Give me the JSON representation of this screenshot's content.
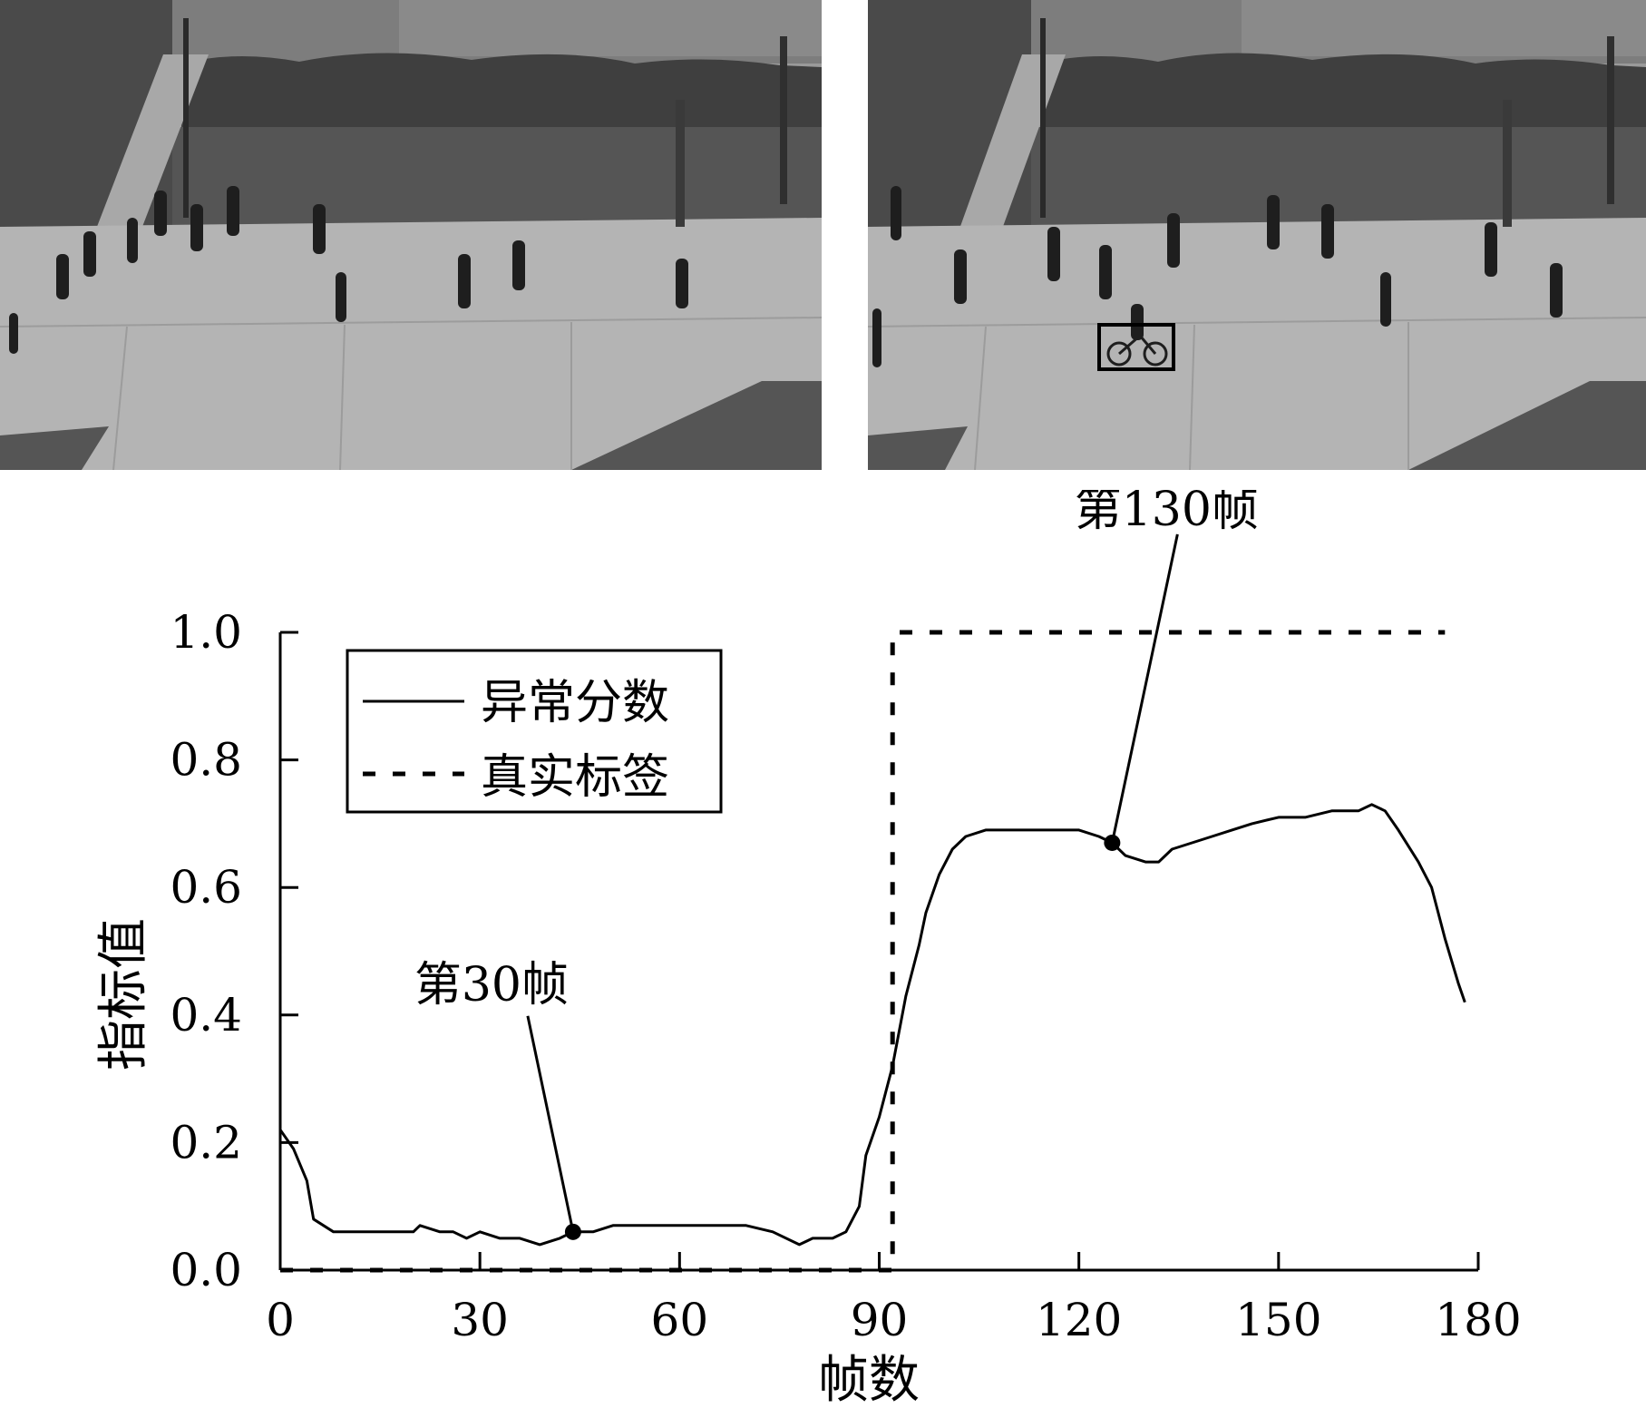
{
  "figure": {
    "panels": [
      {
        "name": "normal-frame",
        "content": "grayscale surveillance frame: pedestrians walking on a campus plaza"
      },
      {
        "name": "anomaly-frame",
        "content": "grayscale surveillance frame: pedestrians on a campus plaza, a cyclist marked with a rectangle"
      }
    ]
  },
  "chart_data": {
    "type": "line",
    "title": "",
    "xlabel": "帧数",
    "ylabel": "指标值",
    "xlim": [
      0,
      180
    ],
    "ylim": [
      0.0,
      1.0
    ],
    "x_ticks": [
      "0",
      "30",
      "60",
      "90",
      "120",
      "150",
      "180"
    ],
    "y_ticks": [
      "0.0",
      "0.2",
      "0.4",
      "0.6",
      "0.8",
      "1.0"
    ],
    "legend": {
      "position": "top-left",
      "entries": [
        "异常分数",
        "真实标签"
      ]
    },
    "series": [
      {
        "name": "异常分数",
        "style": "solid",
        "points": [
          [
            0,
            0.22
          ],
          [
            2,
            0.19
          ],
          [
            4,
            0.14
          ],
          [
            5,
            0.08
          ],
          [
            8,
            0.06
          ],
          [
            12,
            0.06
          ],
          [
            16,
            0.06
          ],
          [
            20,
            0.06
          ],
          [
            21,
            0.07
          ],
          [
            24,
            0.06
          ],
          [
            26,
            0.06
          ],
          [
            28,
            0.05
          ],
          [
            30,
            0.06
          ],
          [
            33,
            0.05
          ],
          [
            36,
            0.05
          ],
          [
            39,
            0.04
          ],
          [
            42,
            0.05
          ],
          [
            44,
            0.06
          ],
          [
            47,
            0.06
          ],
          [
            50,
            0.07
          ],
          [
            54,
            0.07
          ],
          [
            57,
            0.07
          ],
          [
            60,
            0.07
          ],
          [
            63,
            0.07
          ],
          [
            66,
            0.07
          ],
          [
            70,
            0.07
          ],
          [
            74,
            0.06
          ],
          [
            78,
            0.04
          ],
          [
            80,
            0.05
          ],
          [
            83,
            0.05
          ],
          [
            85,
            0.06
          ],
          [
            87,
            0.1
          ],
          [
            88,
            0.18
          ],
          [
            90,
            0.24
          ],
          [
            92,
            0.32
          ],
          [
            94,
            0.43
          ],
          [
            96,
            0.51
          ],
          [
            97,
            0.56
          ],
          [
            99,
            0.62
          ],
          [
            101,
            0.66
          ],
          [
            103,
            0.68
          ],
          [
            106,
            0.69
          ],
          [
            110,
            0.69
          ],
          [
            114,
            0.69
          ],
          [
            117,
            0.69
          ],
          [
            120,
            0.69
          ],
          [
            123,
            0.68
          ],
          [
            125,
            0.67
          ],
          [
            127,
            0.65
          ],
          [
            130,
            0.64
          ],
          [
            132,
            0.64
          ],
          [
            134,
            0.66
          ],
          [
            137,
            0.67
          ],
          [
            140,
            0.68
          ],
          [
            143,
            0.69
          ],
          [
            146,
            0.7
          ],
          [
            150,
            0.71
          ],
          [
            154,
            0.71
          ],
          [
            158,
            0.72
          ],
          [
            162,
            0.72
          ],
          [
            164,
            0.73
          ],
          [
            166,
            0.72
          ],
          [
            168,
            0.69
          ],
          [
            171,
            0.64
          ],
          [
            173,
            0.6
          ],
          [
            175,
            0.52
          ],
          [
            177,
            0.45
          ],
          [
            178,
            0.42
          ]
        ]
      },
      {
        "name": "真实标签",
        "style": "dashed",
        "points": [
          [
            0,
            0
          ],
          [
            92,
            0
          ],
          [
            92,
            1.0
          ],
          [
            93,
            1.0
          ],
          [
            175,
            1.0
          ]
        ]
      }
    ],
    "annotations": [
      {
        "text": "第30帧",
        "x": 44,
        "y": 0.06
      },
      {
        "text": "第130帧",
        "x": 125,
        "y": 0.67
      }
    ]
  }
}
